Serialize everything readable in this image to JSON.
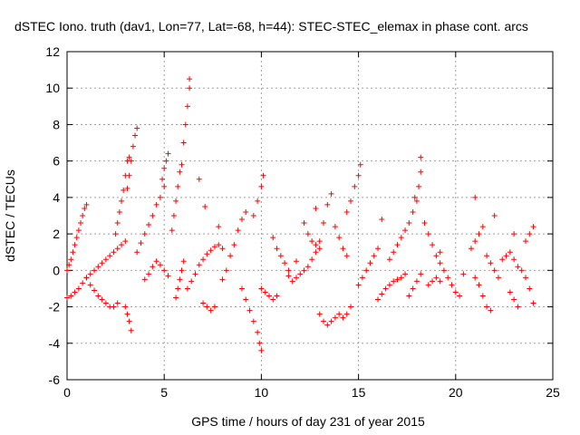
{
  "chart_data": {
    "type": "scatter",
    "title": "dSTEC Iono. truth (dav1, Lon=77, Lat=-68, h=44): STEC-STEC_elemax in phase cont. arcs",
    "xlabel": "GPS time / hours of day 231 of year 2015",
    "ylabel": "dSTEC  / TECUs",
    "xlim": [
      0,
      25
    ],
    "ylim": [
      -6,
      12
    ],
    "x_ticks": [
      "0",
      "5",
      "10",
      "15",
      "20",
      "25"
    ],
    "y_ticks": [
      "-6",
      "-4",
      "-2",
      "0",
      "2",
      "4",
      "6",
      "8",
      "10",
      "12"
    ],
    "grid": true,
    "legend": "none",
    "marker": "+",
    "marker_color": "#ff0000",
    "series": [
      {
        "name": "",
        "points": [
          [
            0.0,
            -1.5
          ],
          [
            0.2,
            -1.4
          ],
          [
            0.4,
            -1.2
          ],
          [
            0.6,
            -1.0
          ],
          [
            0.8,
            -0.7
          ],
          [
            1.0,
            -0.4
          ],
          [
            1.2,
            -0.2
          ],
          [
            1.4,
            0.0
          ],
          [
            1.6,
            0.2
          ],
          [
            1.8,
            0.4
          ],
          [
            2.0,
            0.6
          ],
          [
            2.2,
            0.8
          ],
          [
            2.4,
            1.0
          ],
          [
            2.6,
            1.2
          ],
          [
            2.8,
            1.4
          ],
          [
            3.0,
            1.6
          ],
          [
            0.0,
            0.0
          ],
          [
            0.1,
            0.3
          ],
          [
            0.2,
            0.6
          ],
          [
            0.3,
            1.0
          ],
          [
            0.4,
            1.4
          ],
          [
            0.5,
            1.8
          ],
          [
            0.6,
            2.2
          ],
          [
            0.7,
            2.6
          ],
          [
            0.8,
            3.0
          ],
          [
            0.9,
            3.4
          ],
          [
            1.0,
            3.6
          ],
          [
            1.0,
            -0.4
          ],
          [
            1.2,
            -0.8
          ],
          [
            1.4,
            -1.1
          ],
          [
            1.6,
            -1.4
          ],
          [
            1.8,
            -1.6
          ],
          [
            2.0,
            -1.8
          ],
          [
            2.2,
            -2.0
          ],
          [
            2.4,
            -2.0
          ],
          [
            2.6,
            -1.8
          ],
          [
            2.5,
            2.0
          ],
          [
            2.6,
            2.6
          ],
          [
            2.7,
            3.2
          ],
          [
            2.8,
            3.8
          ],
          [
            2.9,
            4.4
          ],
          [
            3.0,
            5.2
          ],
          [
            3.1,
            6.0
          ],
          [
            3.2,
            6.2
          ],
          [
            3.0,
            -2.0
          ],
          [
            3.1,
            -2.4
          ],
          [
            3.2,
            -2.8
          ],
          [
            3.3,
            -3.3
          ],
          [
            3.1,
            4.5
          ],
          [
            3.2,
            5.2
          ],
          [
            3.3,
            6.0
          ],
          [
            3.4,
            6.8
          ],
          [
            3.5,
            7.4
          ],
          [
            3.6,
            7.8
          ],
          [
            3.6,
            1.0
          ],
          [
            3.8,
            1.5
          ],
          [
            4.0,
            2.0
          ],
          [
            4.2,
            2.5
          ],
          [
            4.4,
            3.0
          ],
          [
            4.6,
            3.6
          ],
          [
            4.8,
            4.0
          ],
          [
            5.0,
            4.6
          ],
          [
            4.0,
            -0.5
          ],
          [
            4.2,
            -0.2
          ],
          [
            4.4,
            0.2
          ],
          [
            4.6,
            0.5
          ],
          [
            4.8,
            0.3
          ],
          [
            5.0,
            0.0
          ],
          [
            5.2,
            -0.3
          ],
          [
            4.9,
            5.0
          ],
          [
            5.0,
            5.6
          ],
          [
            5.1,
            6.0
          ],
          [
            5.2,
            6.4
          ],
          [
            5.4,
            2.2
          ],
          [
            5.5,
            3.0
          ],
          [
            5.6,
            3.8
          ],
          [
            5.7,
            4.6
          ],
          [
            5.8,
            5.4
          ],
          [
            5.9,
            5.8
          ],
          [
            5.6,
            -1.5
          ],
          [
            5.7,
            -1.0
          ],
          [
            5.8,
            -0.5
          ],
          [
            5.9,
            0.0
          ],
          [
            6.0,
            0.5
          ],
          [
            6.0,
            7.0
          ],
          [
            6.1,
            8.0
          ],
          [
            6.2,
            9.0
          ],
          [
            6.3,
            10.0
          ],
          [
            6.3,
            10.5
          ],
          [
            6.2,
            -1.0
          ],
          [
            6.4,
            -0.6
          ],
          [
            6.6,
            -0.2
          ],
          [
            6.8,
            0.3
          ],
          [
            7.0,
            0.6
          ],
          [
            7.2,
            0.9
          ],
          [
            7.4,
            1.1
          ],
          [
            7.6,
            1.3
          ],
          [
            7.8,
            1.4
          ],
          [
            8.0,
            1.2
          ],
          [
            6.8,
            5.0
          ],
          [
            7.0,
            -1.8
          ],
          [
            7.2,
            -2.0
          ],
          [
            7.4,
            -2.2
          ],
          [
            7.6,
            -2.0
          ],
          [
            8.0,
            -0.5
          ],
          [
            8.2,
            0.0
          ],
          [
            8.4,
            0.8
          ],
          [
            8.6,
            1.4
          ],
          [
            8.8,
            2.2
          ],
          [
            9.0,
            2.8
          ],
          [
            9.2,
            3.2
          ],
          [
            9.0,
            -1.0
          ],
          [
            9.2,
            -1.6
          ],
          [
            9.4,
            -2.2
          ],
          [
            9.6,
            -2.8
          ],
          [
            9.8,
            -3.4
          ],
          [
            9.9,
            -4.0
          ],
          [
            10.0,
            -4.4
          ],
          [
            9.6,
            3.0
          ],
          [
            9.8,
            3.8
          ],
          [
            10.0,
            4.6
          ],
          [
            10.1,
            5.2
          ],
          [
            10.0,
            -1.0
          ],
          [
            10.2,
            -1.2
          ],
          [
            10.4,
            -1.4
          ],
          [
            10.6,
            -1.6
          ],
          [
            10.8,
            -1.4
          ],
          [
            10.6,
            1.8
          ],
          [
            10.8,
            1.2
          ],
          [
            11.0,
            0.8
          ],
          [
            11.2,
            0.4
          ],
          [
            11.4,
            0.0
          ],
          [
            11.4,
            -0.3
          ],
          [
            11.6,
            -0.6
          ],
          [
            11.8,
            -0.4
          ],
          [
            12.0,
            -0.2
          ],
          [
            12.2,
            0.0
          ],
          [
            12.4,
            0.2
          ],
          [
            12.6,
            0.6
          ],
          [
            12.8,
            1.0
          ],
          [
            13.0,
            1.6
          ],
          [
            13.2,
            2.6
          ],
          [
            13.4,
            3.6
          ],
          [
            13.6,
            4.2
          ],
          [
            12.2,
            2.6
          ],
          [
            12.4,
            2.0
          ],
          [
            12.6,
            1.6
          ],
          [
            12.8,
            1.4
          ],
          [
            13.0,
            1.2
          ],
          [
            13.0,
            -2.4
          ],
          [
            13.2,
            -2.8
          ],
          [
            13.4,
            -3.0
          ],
          [
            13.6,
            -2.8
          ],
          [
            13.8,
            -2.6
          ],
          [
            14.0,
            -2.4
          ],
          [
            14.2,
            -2.6
          ],
          [
            14.4,
            -2.4
          ],
          [
            14.6,
            -2.0
          ],
          [
            13.8,
            2.4
          ],
          [
            14.0,
            1.8
          ],
          [
            14.2,
            1.2
          ],
          [
            14.4,
            0.8
          ],
          [
            14.4,
            3.2
          ],
          [
            14.6,
            3.8
          ],
          [
            14.8,
            4.6
          ],
          [
            15.0,
            5.2
          ],
          [
            15.1,
            5.8
          ],
          [
            15.0,
            -0.8
          ],
          [
            15.2,
            -0.4
          ],
          [
            15.4,
            0.0
          ],
          [
            15.6,
            0.4
          ],
          [
            15.8,
            0.8
          ],
          [
            16.0,
            1.2
          ],
          [
            16.0,
            -1.6
          ],
          [
            16.2,
            -1.3
          ],
          [
            16.4,
            -1.0
          ],
          [
            16.6,
            -0.8
          ],
          [
            16.8,
            -0.6
          ],
          [
            17.0,
            -0.5
          ],
          [
            17.2,
            -0.4
          ],
          [
            17.4,
            -0.2
          ],
          [
            16.6,
            0.6
          ],
          [
            16.8,
            1.0
          ],
          [
            17.0,
            1.4
          ],
          [
            17.2,
            1.8
          ],
          [
            17.4,
            2.2
          ],
          [
            17.6,
            2.6
          ],
          [
            17.8,
            3.2
          ],
          [
            17.9,
            4.0
          ],
          [
            17.6,
            -1.4
          ],
          [
            17.8,
            -1.0
          ],
          [
            18.0,
            -0.6
          ],
          [
            18.2,
            -0.2
          ],
          [
            18.0,
            3.8
          ],
          [
            18.1,
            4.6
          ],
          [
            18.2,
            5.4
          ],
          [
            18.2,
            6.2
          ],
          [
            18.4,
            2.6
          ],
          [
            18.6,
            2.0
          ],
          [
            18.8,
            1.4
          ],
          [
            19.0,
            0.8
          ],
          [
            19.2,
            0.4
          ],
          [
            19.4,
            0.0
          ],
          [
            19.6,
            -0.4
          ],
          [
            19.8,
            -0.8
          ],
          [
            20.0,
            -1.2
          ],
          [
            20.2,
            -1.4
          ],
          [
            18.6,
            -0.8
          ],
          [
            18.8,
            -0.6
          ],
          [
            19.0,
            -0.4
          ],
          [
            19.2,
            -0.6
          ],
          [
            20.8,
            1.2
          ],
          [
            21.0,
            1.6
          ],
          [
            21.2,
            2.0
          ],
          [
            21.4,
            2.4
          ],
          [
            21.0,
            -0.4
          ],
          [
            21.2,
            -0.8
          ],
          [
            21.4,
            -1.4
          ],
          [
            21.6,
            -2.0
          ],
          [
            21.8,
            -2.2
          ],
          [
            21.6,
            0.8
          ],
          [
            21.8,
            0.4
          ],
          [
            22.0,
            0.0
          ],
          [
            22.2,
            -0.4
          ],
          [
            22.4,
            0.6
          ],
          [
            22.6,
            0.8
          ],
          [
            22.8,
            1.0
          ],
          [
            23.0,
            0.6
          ],
          [
            23.2,
            0.2
          ],
          [
            22.8,
            -1.2
          ],
          [
            23.0,
            -1.6
          ],
          [
            23.2,
            -2.0
          ],
          [
            23.4,
            0.0
          ],
          [
            23.6,
            -0.4
          ],
          [
            23.8,
            -1.0
          ],
          [
            24.0,
            -1.8
          ],
          [
            23.6,
            1.6
          ],
          [
            23.8,
            2.0
          ],
          [
            24.0,
            2.4
          ],
          [
            21.0,
            4.0
          ],
          [
            22.0,
            3.0
          ],
          [
            23.0,
            2.0
          ],
          [
            7.1,
            3.5
          ],
          [
            7.8,
            2.4
          ],
          [
            11.8,
            0.5
          ],
          [
            12.8,
            3.4
          ],
          [
            16.2,
            2.8
          ],
          [
            19.2,
            1.0
          ],
          [
            20.4,
            -0.2
          ]
        ]
      }
    ]
  }
}
